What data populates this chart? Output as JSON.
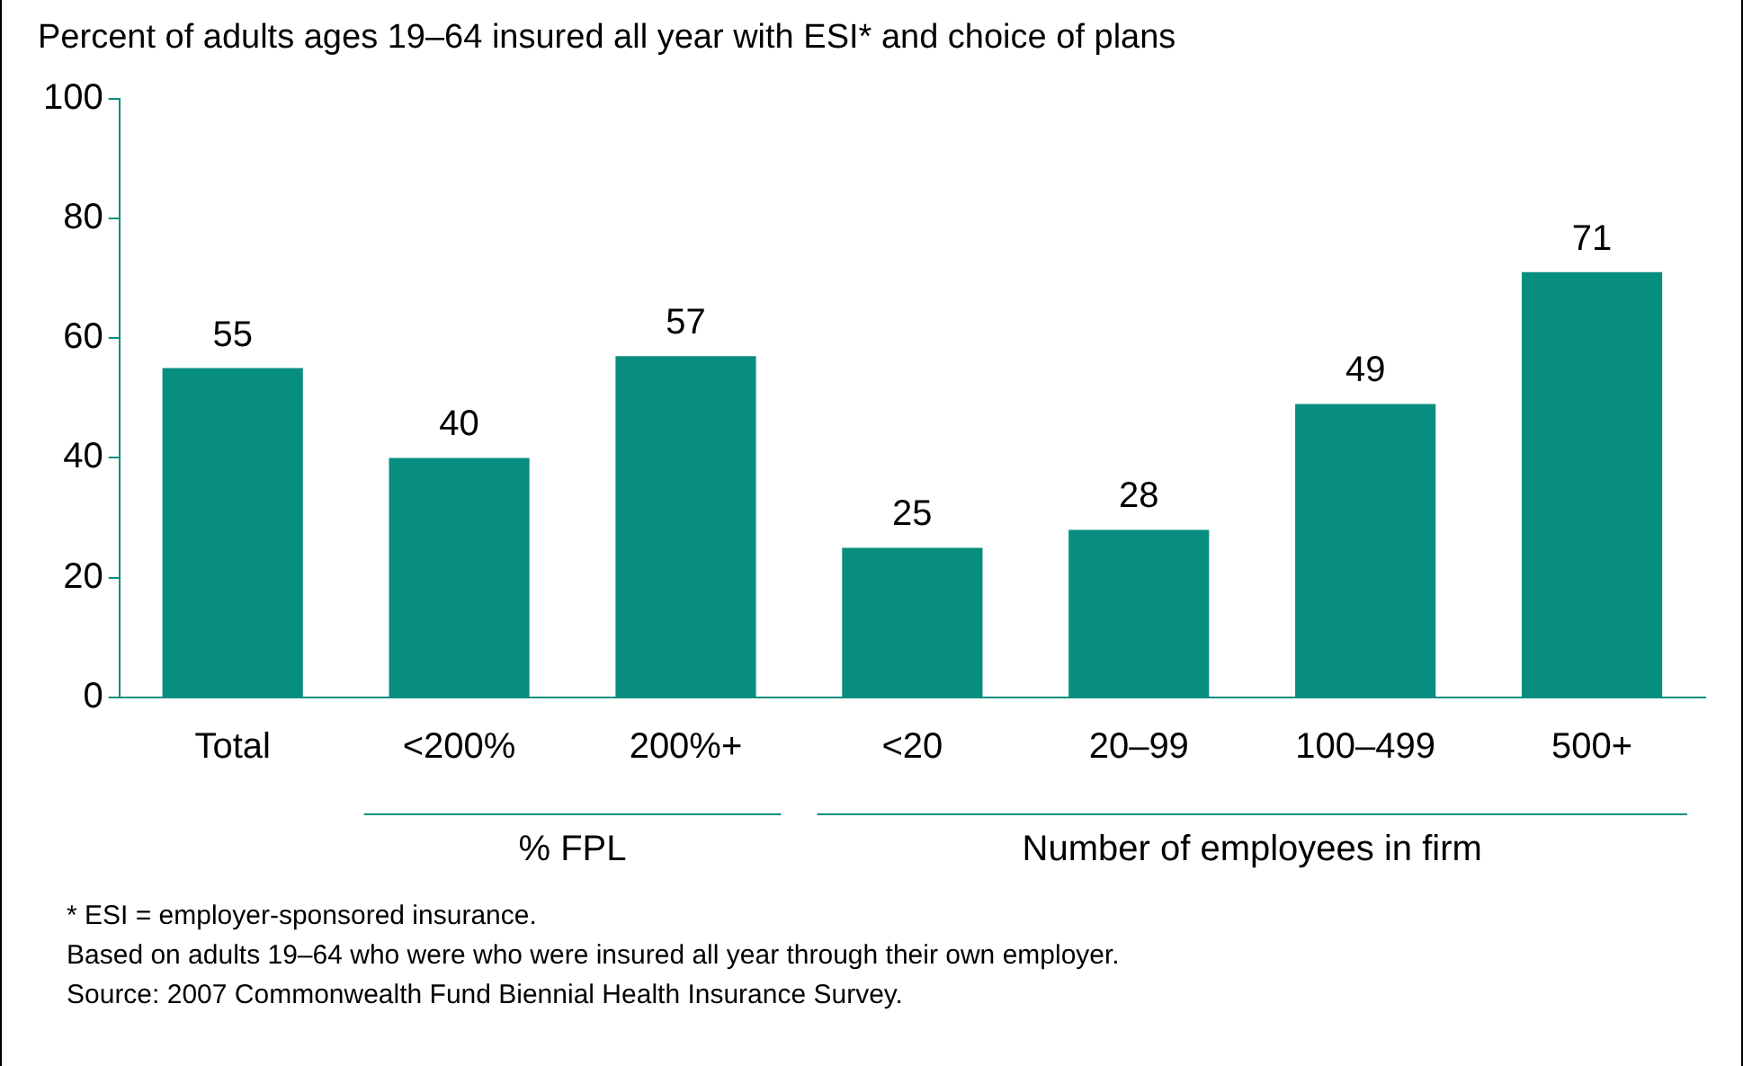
{
  "chart_data": {
    "type": "bar",
    "title": "Percent of adults ages 19–64 insured all year with ESI* and choice of plans",
    "categories": [
      "Total",
      "<200%",
      "200%+",
      "<20",
      "20–99",
      "100–499",
      "500+"
    ],
    "values": [
      55,
      40,
      57,
      25,
      28,
      49,
      71
    ],
    "color": "#078e7e",
    "ylim": [
      0,
      100
    ],
    "yticks": [
      0,
      20,
      40,
      60,
      80,
      100
    ],
    "grid": false,
    "data_labels": true,
    "annotations": [
      "% FPL",
      "Number of employees in firm",
      "* ESI = employer-sponsored insurance.",
      "Based on adults 19–64 who were who were insured all year through their own employer.",
      "Source: 2007 Commonwealth Fund Biennial Health Insurance Survey."
    ]
  }
}
